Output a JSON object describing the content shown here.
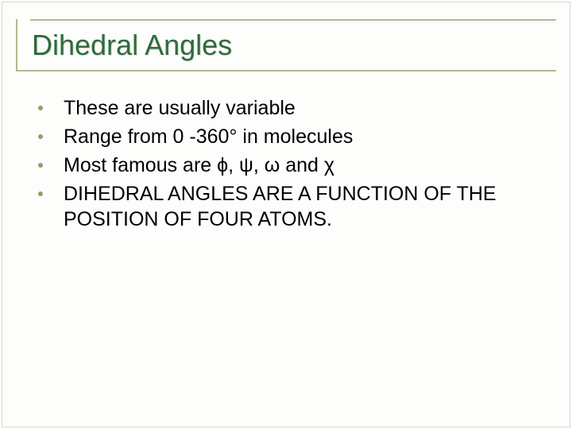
{
  "slide": {
    "title": "Dihedral Angles",
    "bullets": [
      "These are usually variable",
      "Range from 0 -360° in molecules",
      "Most famous are ϕ, ψ, ω and χ",
      "DIHEDRAL ANGLES ARE A FUNCTION OF THE POSITION OF FOUR ATOMS."
    ]
  },
  "style": {
    "background_color": "#fdfdfb",
    "title_color": "#2e6b3a",
    "title_fontsize_pt": 27,
    "body_fontsize_pt": 19,
    "body_text_color": "#000000",
    "rule_color": "#b7b88f",
    "bullet_color": "#9a9a6a",
    "font_family": "Arial",
    "greek_font_family": "Times New Roman / Symbol"
  }
}
